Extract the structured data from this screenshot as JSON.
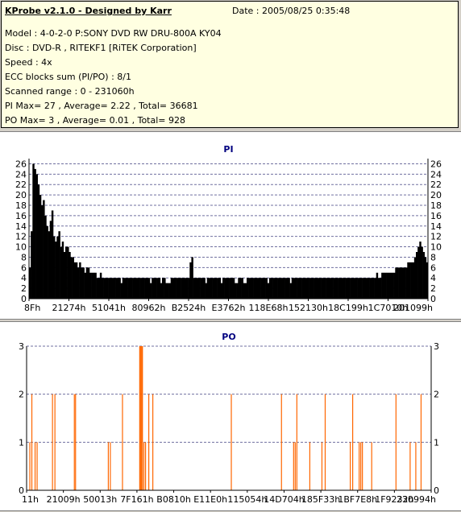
{
  "info": {
    "title": "KProbe v2.1.0 - Designed by Karr",
    "date": "Date : 2005/08/25 0:35:48",
    "model": "Model : 4-0-2-0 P:SONY     DVD RW DRU-800A  KY04",
    "disc": "Disc : DVD-R , RITEKF1 [RiTEK Corporation]",
    "speed": "Speed : 4x",
    "ecc": "ECC blocks sum (PI/PO) : 8/1",
    "range": "Scanned range : 0 - 231060h",
    "pi_stats": "PI Max= 27 , Average= 2.22 , Total= 36681",
    "po_stats": "PO Max= 3 , Average= 0.01 , Total= 928"
  },
  "chart_data": [
    {
      "type": "bar",
      "title": "PI",
      "ylim": [
        0,
        27
      ],
      "yticks": [
        0,
        2,
        4,
        6,
        8,
        10,
        12,
        14,
        16,
        18,
        20,
        22,
        24,
        26
      ],
      "xtick_labels": [
        "8Fh",
        "21274h",
        "51041h",
        "80962h",
        "B2524h",
        "E3762h",
        "118E68h",
        "152130h",
        "18C199h",
        "1C7010h",
        "201099h"
      ],
      "grid": true,
      "color": "#000000",
      "values": [
        6,
        13,
        26,
        25,
        24,
        22,
        20,
        18,
        19,
        16,
        14,
        13,
        15,
        17,
        12,
        11,
        12,
        13,
        10,
        11,
        9,
        10,
        10,
        9,
        8,
        8,
        7,
        7,
        6,
        7,
        6,
        6,
        5,
        6,
        6,
        5,
        5,
        5,
        5,
        4,
        4,
        5,
        4,
        4,
        4,
        4,
        4,
        4,
        4,
        4,
        4,
        4,
        4,
        3,
        4,
        4,
        4,
        4,
        4,
        4,
        4,
        4,
        4,
        4,
        4,
        4,
        4,
        4,
        4,
        4,
        3,
        4,
        4,
        4,
        4,
        4,
        3,
        4,
        4,
        3,
        3,
        3,
        4,
        4,
        4,
        4,
        4,
        4,
        4,
        4,
        4,
        4,
        4,
        7,
        8,
        4,
        4,
        4,
        4,
        4,
        4,
        4,
        3,
        4,
        4,
        4,
        4,
        4,
        4,
        4,
        4,
        3,
        4,
        4,
        4,
        4,
        4,
        4,
        4,
        3,
        3,
        4,
        4,
        4,
        3,
        3,
        4,
        4,
        4,
        4,
        4,
        4,
        4,
        4,
        4,
        4,
        4,
        4,
        3,
        4,
        4,
        4,
        4,
        4,
        4,
        4,
        4,
        4,
        4,
        4,
        4,
        3,
        4,
        4,
        4,
        4,
        4,
        4,
        4,
        4,
        4,
        4,
        4,
        4,
        4,
        4,
        4,
        4,
        4,
        4,
        4,
        4,
        4,
        4,
        4,
        4,
        4,
        4,
        4,
        4,
        4,
        4,
        4,
        4,
        4,
        4,
        4,
        4,
        4,
        4,
        4,
        4,
        4,
        4,
        4,
        4,
        4,
        4,
        4,
        4,
        4,
        5,
        4,
        4,
        5,
        5,
        5,
        5,
        5,
        5,
        5,
        5,
        6,
        6,
        6,
        6,
        6,
        6,
        6,
        7,
        7,
        7,
        7,
        8,
        9,
        10,
        11,
        10,
        9,
        8,
        7
      ]
    },
    {
      "type": "bar",
      "title": "PO",
      "ylim": [
        0,
        3
      ],
      "yticks": [
        0,
        1,
        2,
        3
      ],
      "xtick_labels": [
        "11h",
        "21009h",
        "50013h",
        "7F161h",
        "B0810h",
        "E11E0h",
        "115054h",
        "14D704h",
        "185F33h",
        "1BF7E8h",
        "1F9232h",
        "230994h"
      ],
      "grid": true,
      "color": "#ff6600",
      "spikes": [
        {
          "pos": 0.008,
          "value": 1
        },
        {
          "pos": 0.013,
          "value": 2
        },
        {
          "pos": 0.021,
          "value": 1
        },
        {
          "pos": 0.026,
          "value": 1
        },
        {
          "pos": 0.064,
          "value": 2
        },
        {
          "pos": 0.07,
          "value": 2
        },
        {
          "pos": 0.118,
          "value": 2
        },
        {
          "pos": 0.121,
          "value": 2
        },
        {
          "pos": 0.202,
          "value": 1
        },
        {
          "pos": 0.207,
          "value": 1
        },
        {
          "pos": 0.237,
          "value": 2
        },
        {
          "pos": 0.28,
          "value": 3
        },
        {
          "pos": 0.283,
          "value": 3
        },
        {
          "pos": 0.286,
          "value": 3
        },
        {
          "pos": 0.29,
          "value": 1
        },
        {
          "pos": 0.294,
          "value": 1
        },
        {
          "pos": 0.302,
          "value": 2
        },
        {
          "pos": 0.312,
          "value": 2
        },
        {
          "pos": 0.506,
          "value": 2
        },
        {
          "pos": 0.63,
          "value": 2
        },
        {
          "pos": 0.66,
          "value": 1
        },
        {
          "pos": 0.664,
          "value": 1
        },
        {
          "pos": 0.668,
          "value": 2
        },
        {
          "pos": 0.7,
          "value": 1
        },
        {
          "pos": 0.73,
          "value": 1
        },
        {
          "pos": 0.738,
          "value": 2
        },
        {
          "pos": 0.8,
          "value": 1
        },
        {
          "pos": 0.806,
          "value": 2
        },
        {
          "pos": 0.822,
          "value": 1
        },
        {
          "pos": 0.826,
          "value": 1
        },
        {
          "pos": 0.83,
          "value": 1
        },
        {
          "pos": 0.853,
          "value": 1
        },
        {
          "pos": 0.913,
          "value": 2
        },
        {
          "pos": 0.948,
          "value": 1
        },
        {
          "pos": 0.962,
          "value": 1
        },
        {
          "pos": 0.975,
          "value": 2
        }
      ]
    }
  ]
}
